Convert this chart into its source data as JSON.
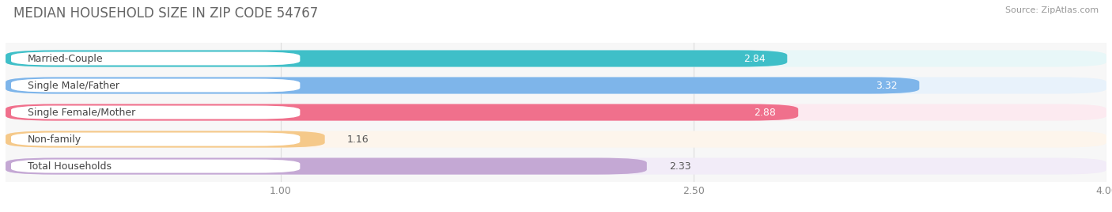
{
  "title": "MEDIAN HOUSEHOLD SIZE IN ZIP CODE 54767",
  "source": "Source: ZipAtlas.com",
  "categories": [
    "Married-Couple",
    "Single Male/Father",
    "Single Female/Mother",
    "Non-family",
    "Total Households"
  ],
  "values": [
    2.84,
    3.32,
    2.88,
    1.16,
    2.33
  ],
  "bar_colors": [
    "#3FBFC8",
    "#7EB5EA",
    "#F0708C",
    "#F5C98A",
    "#C4A8D4"
  ],
  "bar_bg_colors": [
    "#E8F7F8",
    "#E8F2FB",
    "#FCEAF0",
    "#FDF5EC",
    "#F2ECF8"
  ],
  "value_colors": [
    "white",
    "white",
    "white",
    "dark",
    "dark"
  ],
  "xlim_data": [
    0,
    4.2
  ],
  "xlim_display": [
    0,
    4.0
  ],
  "xticks": [
    1.0,
    2.5,
    4.0
  ],
  "title_fontsize": 12,
  "label_fontsize": 9,
  "value_fontsize": 9,
  "source_fontsize": 8,
  "background_color": "#ffffff",
  "plot_bg_color": "#f7f7f7"
}
